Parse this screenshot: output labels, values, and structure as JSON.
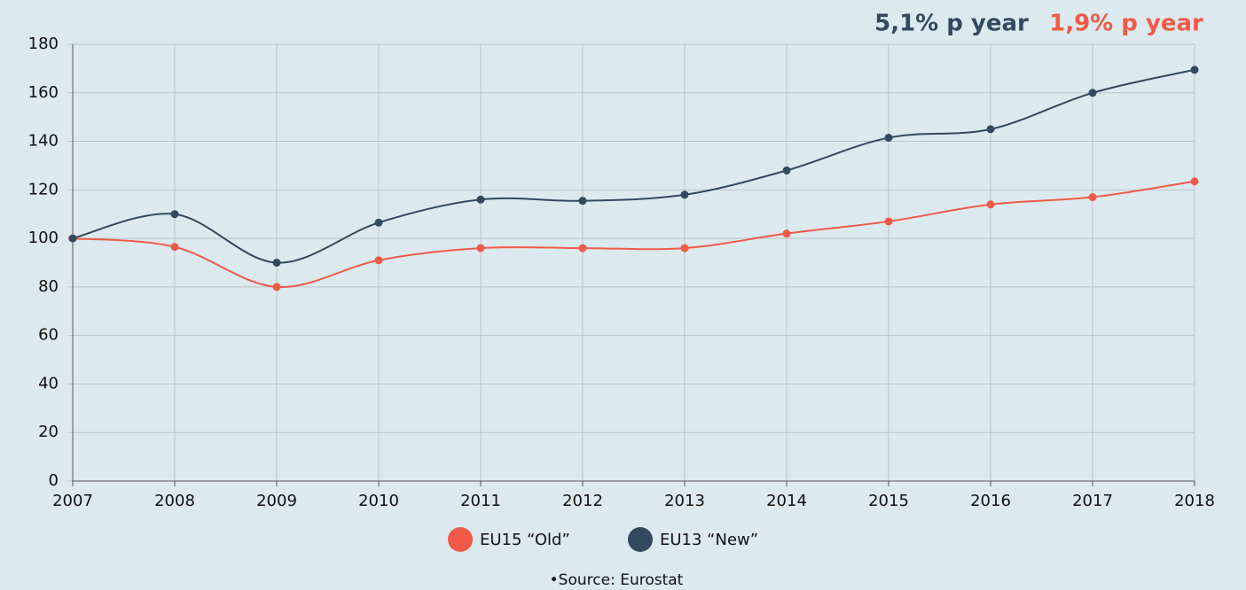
{
  "chart_data": {
    "type": "line",
    "annotations": [
      {
        "text": "5,1% p year",
        "color": "#34495e"
      },
      {
        "text": "1,9% p year",
        "color": "#f05a46"
      }
    ],
    "x": [
      2007,
      2008,
      2009,
      2010,
      2011,
      2012,
      2013,
      2014,
      2015,
      2016,
      2017,
      2018
    ],
    "series": [
      {
        "name": "EU15 “Old”",
        "color": "#f05a46",
        "values": [
          100,
          96.5,
          80,
          91,
          96,
          96,
          96,
          102,
          107,
          114,
          117,
          123.5
        ]
      },
      {
        "name": "EU13 “New”",
        "color": "#34495e",
        "values": [
          100,
          110,
          90,
          106.5,
          116,
          115.5,
          118,
          128,
          141.5,
          145,
          160,
          169.5
        ]
      }
    ],
    "xlim": [
      2007,
      2018
    ],
    "xticks": [
      2007,
      2008,
      2009,
      2010,
      2011,
      2012,
      2013,
      2014,
      2015,
      2016,
      2017,
      2018
    ],
    "ylim": [
      0,
      180
    ],
    "yticks": [
      0,
      20,
      40,
      60,
      80,
      100,
      120,
      140,
      160,
      180
    ],
    "grid": true,
    "legend": "bottom",
    "source": "•Source: Eurostat"
  }
}
